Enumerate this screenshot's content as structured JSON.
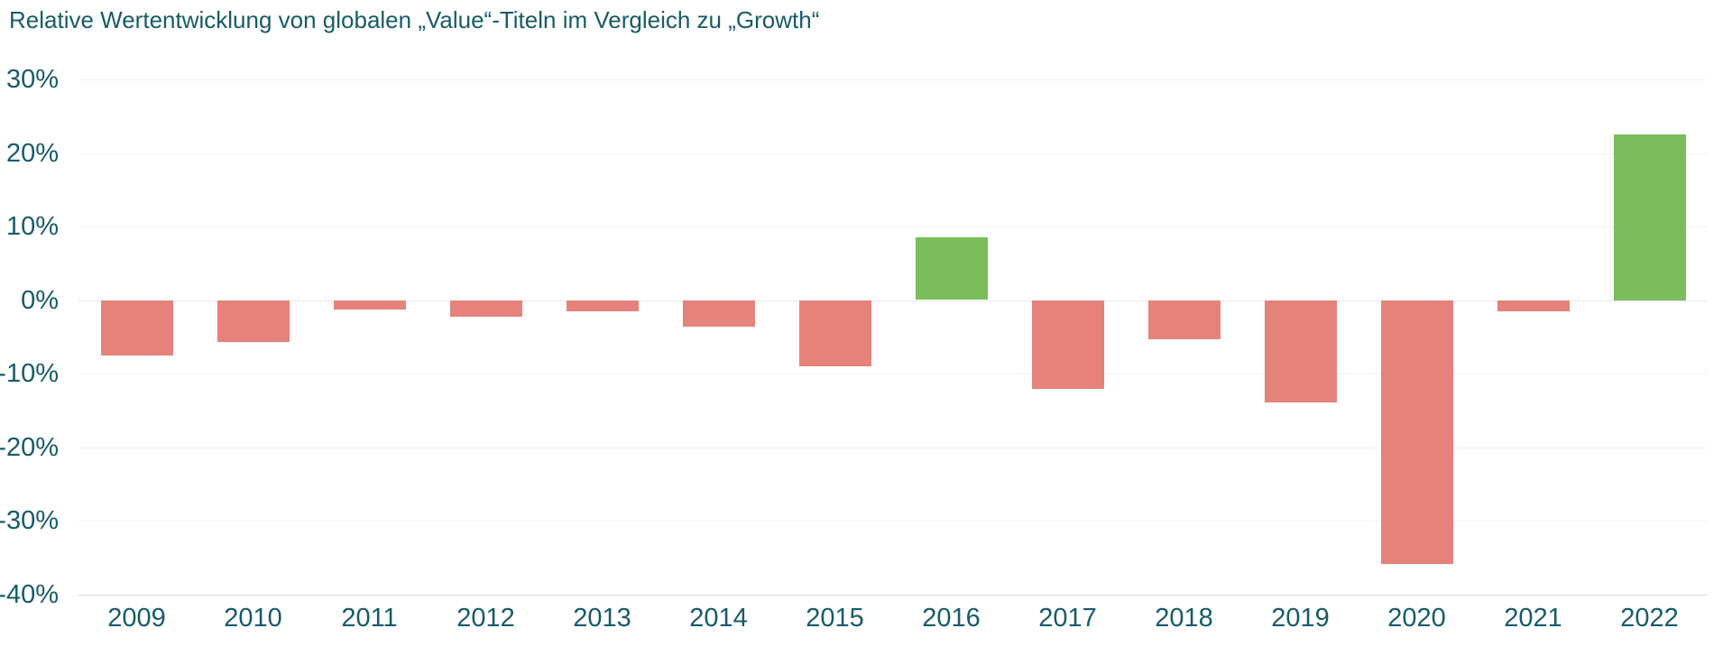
{
  "title": "Relative Wertentwicklung von globalen „Value“-Titeln im Vergleich zu „Growth“",
  "colors": {
    "positive_bar": "#7abd5a",
    "negative_bar": "#e5827b",
    "text": "#175b68",
    "gridline": "#f3f3f3",
    "zero_line": "#e6e6e6",
    "axis_baseline": "#dcdcdc",
    "background": "#ffffff"
  },
  "chart_data": {
    "type": "bar",
    "title": "Relative Wertentwicklung von globalen „Value“-Titeln im Vergleich zu „Growth“",
    "categories": [
      "2009",
      "2010",
      "2011",
      "2012",
      "2013",
      "2014",
      "2015",
      "2016",
      "2017",
      "2018",
      "2019",
      "2020",
      "2021",
      "2022"
    ],
    "values": [
      -7.5,
      -5.6,
      -1.2,
      -2.2,
      -1.5,
      -3.6,
      -9.0,
      8.5,
      -12.0,
      -5.3,
      -13.8,
      -35.8,
      -1.5,
      22.5
    ],
    "xlabel": "",
    "ylabel": "",
    "ylim": [
      -40,
      30
    ],
    "ytick_values": [
      30,
      20,
      10,
      0,
      -10,
      -20,
      -30,
      -40
    ],
    "ytick_labels": [
      "30%",
      "20%",
      "10%",
      "0%",
      "-10%",
      "-20%",
      "-30%",
      "-40%"
    ],
    "grid": true,
    "legend_position": "none",
    "positive_years": [
      "2016",
      "2022"
    ]
  }
}
